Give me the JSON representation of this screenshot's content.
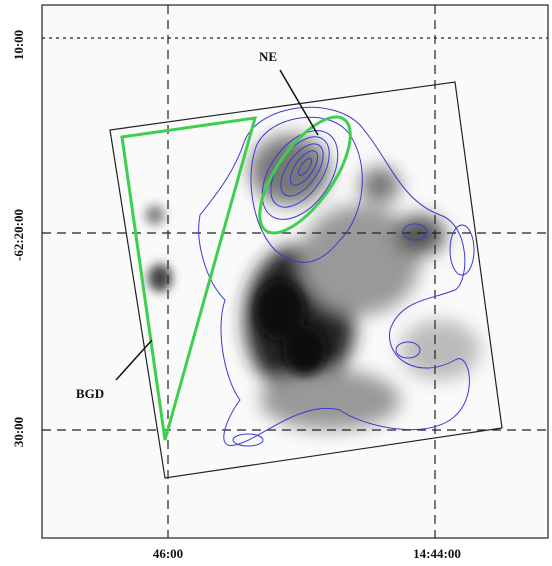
{
  "axes": {
    "y_labels": [
      "10:00",
      "-62:20:00",
      "30:00"
    ],
    "x_labels": [
      "46:00",
      "14:44:00"
    ]
  },
  "annotations": {
    "ne": "NE",
    "bgd": "BGD"
  }
}
